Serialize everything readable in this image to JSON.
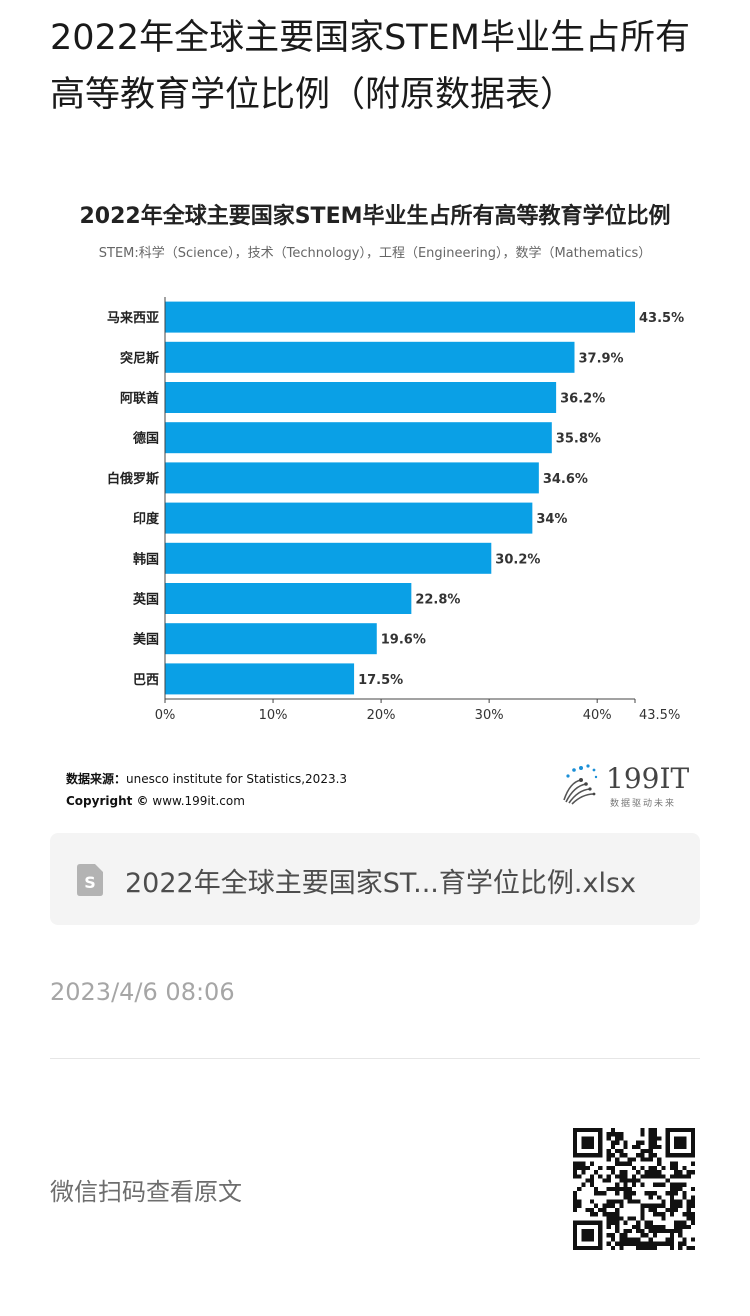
{
  "article": {
    "title": "2022年全球主要国家STEM毕业生占所有高等教育学位比例（附原数据表）"
  },
  "figure": {
    "source_label": "数据来源：",
    "source_text": "unesco institute for Statistics,2023.3",
    "copyright_label": "Copyright ©",
    "copyright_text": "www.199it.com",
    "logo_text": "199IT",
    "logo_tagline": "数据驱动未来"
  },
  "chart_data": {
    "type": "bar",
    "orientation": "horizontal",
    "title": "2022年全球主要国家STEM毕业生占所有高等教育学位比例",
    "subtitle": "STEM:科学（Science），技术（Technology），工程（Engineering），数学（Mathematics）",
    "categories": [
      "马来西亚",
      "突尼斯",
      "阿联酋",
      "德国",
      "白俄罗斯",
      "印度",
      "韩国",
      "英国",
      "美国",
      "巴西"
    ],
    "values": [
      43.5,
      37.9,
      36.2,
      35.8,
      34.6,
      34,
      30.2,
      22.8,
      19.6,
      17.5
    ],
    "data_labels": [
      "43.5%",
      "37.9%",
      "36.2%",
      "35.8%",
      "34.6%",
      "34%",
      "30.2%",
      "22.8%",
      "19.6%",
      "17.5%"
    ],
    "xlim": [
      0,
      43.5
    ],
    "x_ticks": [
      0,
      10,
      20,
      30,
      40,
      43.5
    ],
    "x_tick_labels": [
      "0%",
      "10%",
      "20%",
      "30%",
      "40%",
      "43.5%"
    ],
    "bar_color": "#0aa0e6",
    "grid": false,
    "legend": "none"
  },
  "attachment": {
    "file_name": "2022年全球主要国家ST...育学位比例.xlsx",
    "icon": "spreadsheet-file-icon",
    "icon_letter": "S",
    "icon_color": "#b3b3b3"
  },
  "meta": {
    "timestamp": "2023/4/6 08:06",
    "qr_hint": "微信扫码查看原文"
  }
}
